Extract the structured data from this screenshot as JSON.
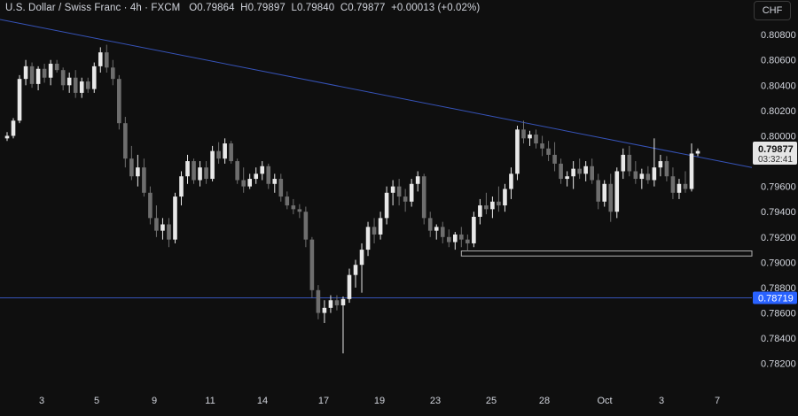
{
  "header": {
    "symbol": "U.S. Dollar / Swiss Franc",
    "interval": "4h",
    "source": "FXCM",
    "open_label": "O",
    "open": "0.79864",
    "high_label": "H",
    "high": "0.79897",
    "low_label": "L",
    "low": "0.79840",
    "close_label": "C",
    "close": "0.79877",
    "change": "+0.00013 (+0.02%)"
  },
  "currency_button": "CHF",
  "colors": {
    "background": "#0f0f0f",
    "candle_up": "#e8e8e8",
    "candle_down": "#6e6e6e",
    "trendline": "#3653b8",
    "support_line": "#3653b8",
    "axis_text": "#d1d4dc",
    "zone_border": "#b0b0b0",
    "last_price_bg": "#e6e6e6",
    "level_label_bg": "#2962ff"
  },
  "chart_data": {
    "type": "candlestick",
    "title": "U.S. Dollar / Swiss Franc · 4h · FXCM",
    "ylim": [
      0.781,
      0.8092
    ],
    "y_ticks": [
      "0.80800",
      "0.80600",
      "0.80400",
      "0.80200",
      "0.80000",
      "0.79600",
      "0.79400",
      "0.79200",
      "0.79000",
      "0.78800",
      "0.78600",
      "0.78400",
      "0.78200"
    ],
    "x_ticks": [
      "3",
      "5",
      "9",
      "11",
      "14",
      "17",
      "19",
      "23",
      "25",
      "28",
      "Oct",
      "3",
      "7"
    ],
    "last_price": {
      "value": "0.79877",
      "countdown": "03:32:41"
    },
    "horizontal_level": {
      "value": "0.78719"
    },
    "trendline": {
      "from_price": 0.8092,
      "to_price": 0.7975
    },
    "support_zone": {
      "top": 0.7909,
      "bottom": 0.7905
    },
    "candles": [
      [
        0.7998,
        0.8003,
        0.7996,
        0.8
      ],
      [
        0.8,
        0.8014,
        0.7998,
        0.8012
      ],
      [
        0.8012,
        0.8048,
        0.801,
        0.8045
      ],
      [
        0.8045,
        0.806,
        0.804,
        0.8055
      ],
      [
        0.8055,
        0.8058,
        0.8038,
        0.8041
      ],
      [
        0.8041,
        0.8055,
        0.8036,
        0.8053
      ],
      [
        0.8053,
        0.8057,
        0.8042,
        0.8046
      ],
      [
        0.8046,
        0.806,
        0.804,
        0.8057
      ],
      [
        0.8057,
        0.806,
        0.805,
        0.8052
      ],
      [
        0.8052,
        0.8054,
        0.8036,
        0.804
      ],
      [
        0.804,
        0.805,
        0.8034,
        0.8046
      ],
      [
        0.8046,
        0.8052,
        0.803,
        0.8034
      ],
      [
        0.8034,
        0.8046,
        0.803,
        0.8043
      ],
      [
        0.8043,
        0.8046,
        0.8034,
        0.8037
      ],
      [
        0.8037,
        0.8058,
        0.8034,
        0.8055
      ],
      [
        0.8055,
        0.807,
        0.805,
        0.8066
      ],
      [
        0.8066,
        0.8072,
        0.805,
        0.8054
      ],
      [
        0.8054,
        0.806,
        0.804,
        0.8045
      ],
      [
        0.8045,
        0.8048,
        0.8005,
        0.801
      ],
      [
        0.801,
        0.8015,
        0.7975,
        0.7982
      ],
      [
        0.7982,
        0.7992,
        0.7965,
        0.7968
      ],
      [
        0.7968,
        0.7985,
        0.796,
        0.7975
      ],
      [
        0.7975,
        0.7982,
        0.7952,
        0.7955
      ],
      [
        0.7955,
        0.796,
        0.793,
        0.7935
      ],
      [
        0.7935,
        0.7945,
        0.792,
        0.7925
      ],
      [
        0.7925,
        0.7935,
        0.7918,
        0.793
      ],
      [
        0.793,
        0.7935,
        0.7912,
        0.7918
      ],
      [
        0.7918,
        0.7955,
        0.7915,
        0.7952
      ],
      [
        0.7952,
        0.7972,
        0.7945,
        0.7968
      ],
      [
        0.7968,
        0.7985,
        0.7962,
        0.798
      ],
      [
        0.798,
        0.7982,
        0.7962,
        0.7965
      ],
      [
        0.7965,
        0.798,
        0.796,
        0.7975
      ],
      [
        0.7975,
        0.798,
        0.7962,
        0.7966
      ],
      [
        0.7966,
        0.7992,
        0.7964,
        0.7988
      ],
      [
        0.7988,
        0.7995,
        0.7978,
        0.7982
      ],
      [
        0.7982,
        0.7998,
        0.7978,
        0.7994
      ],
      [
        0.7994,
        0.7996,
        0.7978,
        0.798
      ],
      [
        0.798,
        0.7982,
        0.7962,
        0.7965
      ],
      [
        0.7965,
        0.7975,
        0.7955,
        0.796
      ],
      [
        0.796,
        0.797,
        0.7958,
        0.7966
      ],
      [
        0.7966,
        0.7975,
        0.7962,
        0.797
      ],
      [
        0.797,
        0.798,
        0.7965,
        0.7976
      ],
      [
        0.7976,
        0.7978,
        0.7958,
        0.7962
      ],
      [
        0.7962,
        0.797,
        0.7955,
        0.7966
      ],
      [
        0.7966,
        0.797,
        0.7948,
        0.7952
      ],
      [
        0.7952,
        0.7956,
        0.7942,
        0.7945
      ],
      [
        0.7945,
        0.795,
        0.7938,
        0.7942
      ],
      [
        0.7942,
        0.7946,
        0.7935,
        0.794
      ],
      [
        0.794,
        0.7944,
        0.7912,
        0.7918
      ],
      [
        0.7918,
        0.792,
        0.7872,
        0.7878
      ],
      [
        0.7878,
        0.7882,
        0.7855,
        0.786
      ],
      [
        0.786,
        0.787,
        0.7852,
        0.7864
      ],
      [
        0.7864,
        0.7874,
        0.786,
        0.787
      ],
      [
        0.787,
        0.7874,
        0.7862,
        0.7866
      ],
      [
        0.7866,
        0.7873,
        0.7828,
        0.7871
      ],
      [
        0.7871,
        0.7895,
        0.7868,
        0.789
      ],
      [
        0.789,
        0.7902,
        0.788,
        0.7898
      ],
      [
        0.7898,
        0.7915,
        0.7876,
        0.791
      ],
      [
        0.791,
        0.7932,
        0.7905,
        0.7928
      ],
      [
        0.7928,
        0.7935,
        0.7915,
        0.7922
      ],
      [
        0.7922,
        0.794,
        0.7918,
        0.7935
      ],
      [
        0.7935,
        0.796,
        0.793,
        0.7955
      ],
      [
        0.7955,
        0.7965,
        0.7945,
        0.796
      ],
      [
        0.796,
        0.7966,
        0.7945,
        0.7952
      ],
      [
        0.7952,
        0.7958,
        0.794,
        0.7948
      ],
      [
        0.7948,
        0.7966,
        0.7944,
        0.7962
      ],
      [
        0.7962,
        0.7972,
        0.7956,
        0.7968
      ],
      [
        0.7968,
        0.797,
        0.793,
        0.7935
      ],
      [
        0.7935,
        0.794,
        0.792,
        0.7925
      ],
      [
        0.7925,
        0.793,
        0.7918,
        0.7928
      ],
      [
        0.7928,
        0.7932,
        0.7915,
        0.792
      ],
      [
        0.792,
        0.7926,
        0.7912,
        0.7916
      ],
      [
        0.7916,
        0.7924,
        0.791,
        0.7922
      ],
      [
        0.7922,
        0.7928,
        0.7912,
        0.7918
      ],
      [
        0.7918,
        0.7922,
        0.7909,
        0.7915
      ],
      [
        0.7915,
        0.794,
        0.7912,
        0.7936
      ],
      [
        0.7936,
        0.795,
        0.793,
        0.7945
      ],
      [
        0.7945,
        0.7955,
        0.7938,
        0.7942
      ],
      [
        0.7942,
        0.7952,
        0.7935,
        0.7948
      ],
      [
        0.7948,
        0.796,
        0.794,
        0.7945
      ],
      [
        0.7945,
        0.7962,
        0.794,
        0.7958
      ],
      [
        0.7958,
        0.7975,
        0.795,
        0.797
      ],
      [
        0.797,
        0.8008,
        0.7965,
        0.8005
      ],
      [
        0.8005,
        0.8012,
        0.7994,
        0.7998
      ],
      [
        0.7998,
        0.8004,
        0.7992,
        0.8001
      ],
      [
        0.8001,
        0.8005,
        0.799,
        0.7994
      ],
      [
        0.7994,
        0.8,
        0.7984,
        0.799
      ],
      [
        0.799,
        0.7996,
        0.798,
        0.7985
      ],
      [
        0.7985,
        0.7995,
        0.7972,
        0.7978
      ],
      [
        0.7978,
        0.7982,
        0.7962,
        0.7966
      ],
      [
        0.7966,
        0.7972,
        0.796,
        0.7968
      ],
      [
        0.7968,
        0.798,
        0.7958,
        0.7974
      ],
      [
        0.7974,
        0.7982,
        0.7966,
        0.797
      ],
      [
        0.797,
        0.798,
        0.7964,
        0.7976
      ],
      [
        0.7976,
        0.7982,
        0.7962,
        0.7965
      ],
      [
        0.7965,
        0.797,
        0.7942,
        0.7948
      ],
      [
        0.7948,
        0.7965,
        0.7944,
        0.7962
      ],
      [
        0.7962,
        0.797,
        0.7932,
        0.794
      ],
      [
        0.794,
        0.7975,
        0.7935,
        0.7972
      ],
      [
        0.7972,
        0.799,
        0.7966,
        0.7985
      ],
      [
        0.7985,
        0.7992,
        0.7968,
        0.7972
      ],
      [
        0.7972,
        0.798,
        0.7962,
        0.7966
      ],
      [
        0.7966,
        0.7974,
        0.7958,
        0.797
      ],
      [
        0.797,
        0.7976,
        0.7962,
        0.7965
      ],
      [
        0.7965,
        0.7998,
        0.796,
        0.7975
      ],
      [
        0.7975,
        0.7985,
        0.7968,
        0.798
      ],
      [
        0.798,
        0.7984,
        0.7964,
        0.7968
      ],
      [
        0.7968,
        0.7975,
        0.795,
        0.7955
      ],
      [
        0.7955,
        0.7966,
        0.795,
        0.7962
      ],
      [
        0.7962,
        0.7972,
        0.7955,
        0.7958
      ],
      [
        0.7958,
        0.7994,
        0.7956,
        0.7986
      ],
      [
        0.7986,
        0.799,
        0.7984,
        0.7988
      ]
    ]
  }
}
